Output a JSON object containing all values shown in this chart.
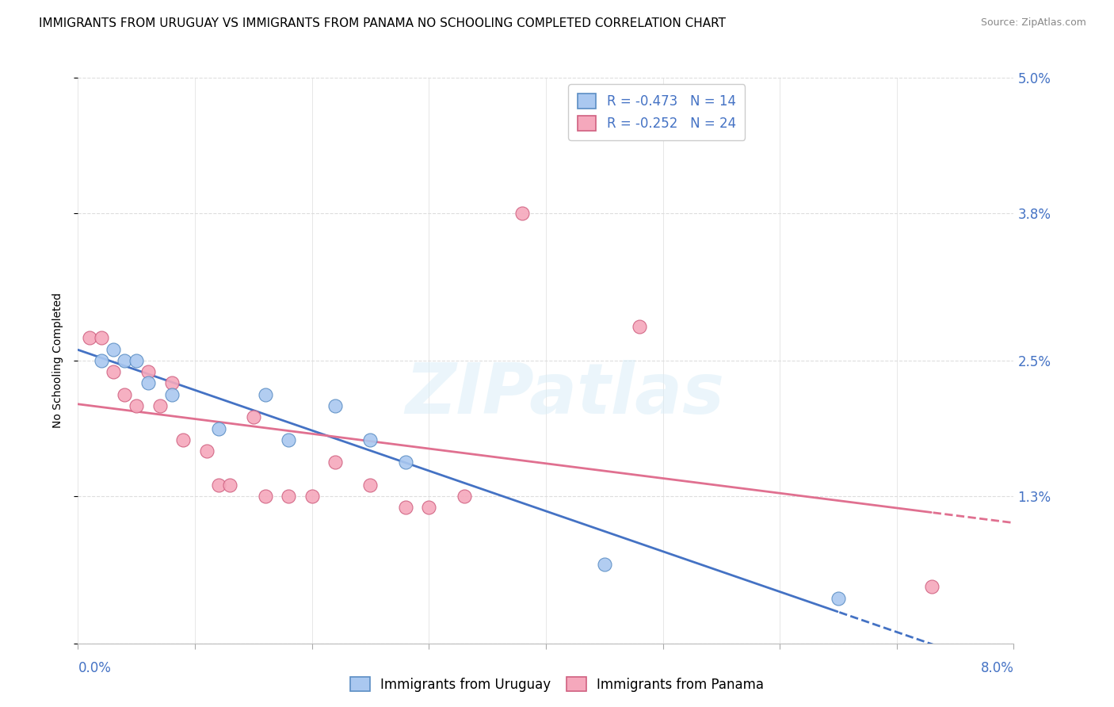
{
  "title": "IMMIGRANTS FROM URUGUAY VS IMMIGRANTS FROM PANAMA NO SCHOOLING COMPLETED CORRELATION CHART",
  "source": "Source: ZipAtlas.com",
  "ylabel": "No Schooling Completed",
  "yticks": [
    0.0,
    0.013,
    0.025,
    0.038,
    0.05
  ],
  "ytick_labels": [
    "",
    "1.3%",
    "2.5%",
    "3.8%",
    "5.0%"
  ],
  "xlim": [
    0.0,
    0.08
  ],
  "ylim": [
    0.0,
    0.05
  ],
  "uruguay_label": "Immigrants from Uruguay",
  "panama_label": "Immigrants from Panama",
  "uruguay_color": "#aac8f0",
  "panama_color": "#f5a8bc",
  "uruguay_edge_color": "#5b8ec4",
  "panama_edge_color": "#d06080",
  "uruguay_line_color": "#4472c4",
  "panama_line_color": "#e07090",
  "legend_text_color": "#4472c4",
  "uruguay_R": "-0.473",
  "uruguay_N": "14",
  "panama_R": "-0.252",
  "panama_N": "24",
  "uruguay_x": [
    0.002,
    0.003,
    0.004,
    0.005,
    0.006,
    0.008,
    0.012,
    0.016,
    0.018,
    0.022,
    0.025,
    0.028,
    0.045,
    0.065
  ],
  "uruguay_y": [
    0.025,
    0.026,
    0.025,
    0.025,
    0.023,
    0.022,
    0.019,
    0.022,
    0.018,
    0.021,
    0.018,
    0.016,
    0.007,
    0.004
  ],
  "panama_x": [
    0.001,
    0.002,
    0.003,
    0.004,
    0.005,
    0.006,
    0.007,
    0.008,
    0.009,
    0.011,
    0.012,
    0.013,
    0.015,
    0.016,
    0.018,
    0.02,
    0.022,
    0.025,
    0.028,
    0.03,
    0.033,
    0.038,
    0.048,
    0.073
  ],
  "panama_y": [
    0.027,
    0.027,
    0.024,
    0.022,
    0.021,
    0.024,
    0.021,
    0.023,
    0.018,
    0.017,
    0.014,
    0.014,
    0.02,
    0.013,
    0.013,
    0.013,
    0.016,
    0.014,
    0.012,
    0.012,
    0.013,
    0.038,
    0.028,
    0.005
  ],
  "watermark": "ZIPatlas",
  "background_color": "#ffffff",
  "grid_color": "#dddddd",
  "title_fontsize": 11,
  "axis_label_fontsize": 10,
  "tick_color": "#4472c4",
  "tick_fontsize": 12,
  "legend_fontsize": 12,
  "source_fontsize": 9
}
